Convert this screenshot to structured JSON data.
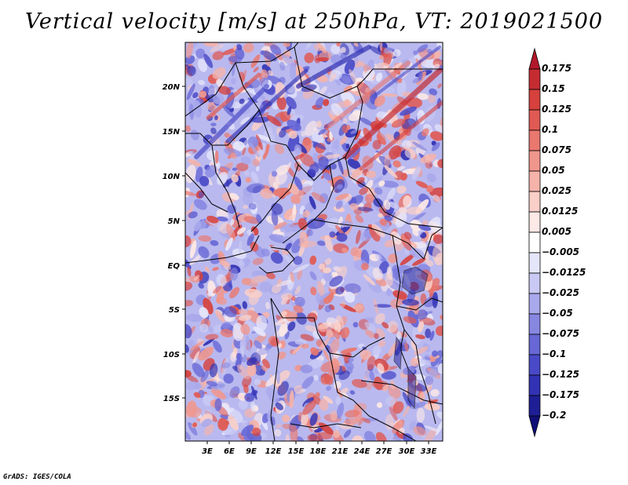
{
  "title": "Vertical velocity [m/s] at 250hPa, VT: 2019021500",
  "credit": "GrADS: IGES/COLA",
  "map": {
    "lat_ticks": [
      "20N",
      "15N",
      "10N",
      "5N",
      "EQ",
      "5S",
      "10S",
      "15S"
    ],
    "lon_ticks": [
      "3E",
      "6E",
      "9E",
      "12E",
      "15E",
      "18E",
      "21E",
      "24E",
      "27E",
      "30E",
      "33E"
    ]
  },
  "colorbar": {
    "labels": [
      "0.175",
      "0.15",
      "0.125",
      "0.1",
      "0.075",
      "0.05",
      "0.025",
      "0.0125",
      "0.005",
      "−0.005",
      "−0.0125",
      "−0.025",
      "−0.05",
      "−0.075",
      "−0.1",
      "−0.125",
      "−0.175",
      "−0.2"
    ],
    "colors": [
      "#b2182b",
      "#c52c32",
      "#d6413d",
      "#e05a53",
      "#e9786f",
      "#f0968c",
      "#f5b3aa",
      "#f9cfc8",
      "#fde9e6",
      "#ffffff",
      "#e6e6fb",
      "#c9c9f4",
      "#a8a8ec",
      "#8787e2",
      "#6767d6",
      "#4a4ac8",
      "#3232b4",
      "#1e1e96",
      "#0f0f78"
    ]
  }
}
